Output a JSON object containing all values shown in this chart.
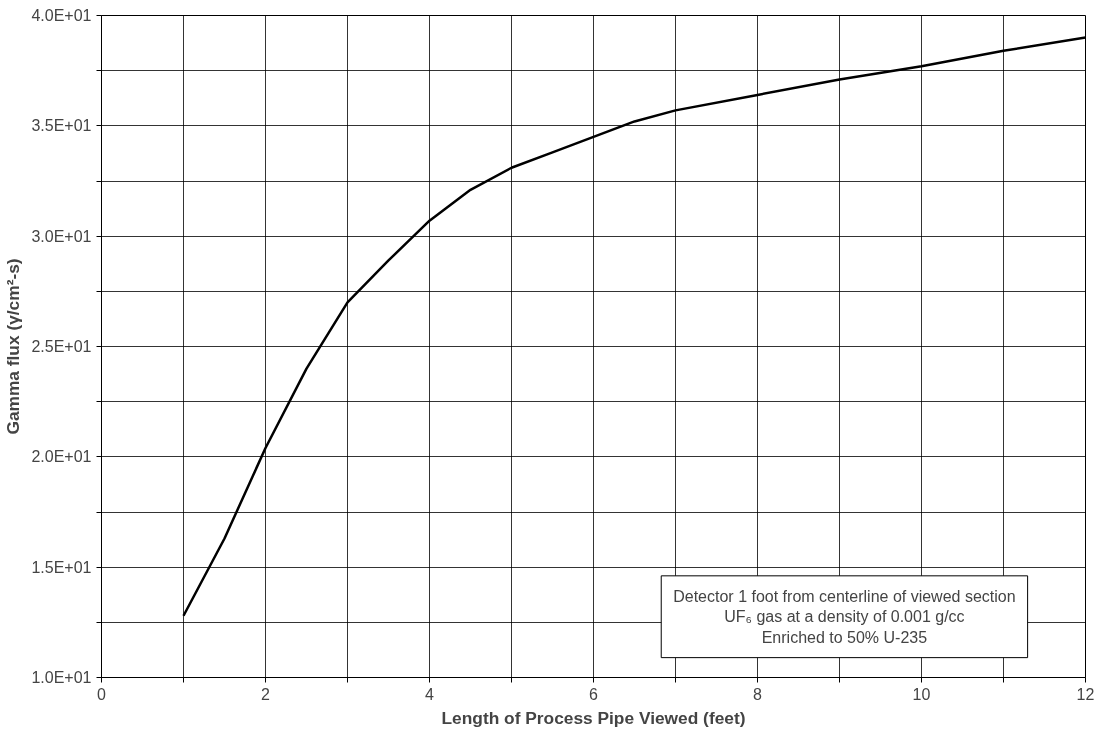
{
  "chart_data": {
    "type": "line",
    "xlabel": "Length of Process Pipe Viewed (feet)",
    "ylabel": "Gamma flux (γ/cm²-s)",
    "annotations": [
      "Detector 1 foot from centerline of viewed section",
      "UF₆ gas at a density of 0.001 g/cc",
      "Enriched to 50% U-235"
    ],
    "x": [
      1,
      1.5,
      2,
      2.5,
      3,
      3.5,
      4,
      4.5,
      5,
      5.5,
      6,
      6.5,
      7,
      8,
      9,
      10,
      11,
      12
    ],
    "series": [
      {
        "color": "#000000",
        "values": [
          12.8,
          16.3,
          20.4,
          24.0,
          27.0,
          28.9,
          30.7,
          32.1,
          33.1,
          33.8,
          34.5,
          35.2,
          35.7,
          36.4,
          37.1,
          37.7,
          38.4,
          39.0
        ]
      }
    ],
    "xlim": [
      0,
      12
    ],
    "ylim": [
      10,
      40
    ],
    "xticks": [
      0,
      {
        "value": 1,
        "label": null
      },
      2,
      {
        "value": 3,
        "label": null
      },
      4,
      {
        "value": 5,
        "label": null
      },
      6,
      {
        "value": 7,
        "label": null
      },
      8,
      {
        "value": 9,
        "label": null
      },
      10,
      {
        "value": 11,
        "label": null
      },
      12
    ],
    "yticks": [
      {
        "value": 10,
        "label": "1.0E+01"
      },
      {
        "value": 12.5,
        "label": null
      },
      {
        "value": 15,
        "label": "1.5E+01"
      },
      {
        "value": 17.5,
        "label": null
      },
      {
        "value": 20,
        "label": "2.0E+01"
      },
      {
        "value": 22.5,
        "label": null
      },
      {
        "value": 25,
        "label": "2.5E+01"
      },
      {
        "value": 27.5,
        "label": null
      },
      {
        "value": 30,
        "label": "3.0E+01"
      },
      {
        "value": 32.5,
        "label": null
      },
      {
        "value": 35,
        "label": "3.5E+01"
      },
      {
        "value": 37.5,
        "label": null
      },
      {
        "value": 40,
        "label": "4.0E+01"
      }
    ],
    "grid": true,
    "marker": "none",
    "line_style": "solid"
  }
}
